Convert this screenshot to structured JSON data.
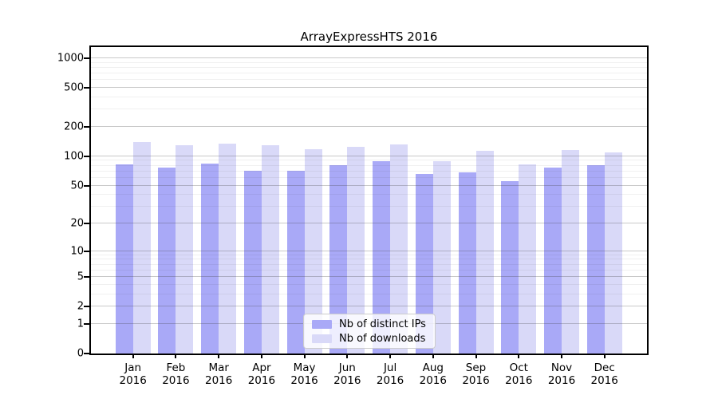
{
  "title": "ArrayExpressHTS 2016",
  "colors": {
    "ips": "#a9a9f7",
    "downloads": "#d9d9f8",
    "axis": "#000000",
    "legend_border": "#cccccc"
  },
  "legend": {
    "items": [
      {
        "label": "Nb of distinct IPs",
        "color_key": "ips"
      },
      {
        "label": "Nb of downloads",
        "color_key": "downloads"
      }
    ]
  },
  "chart_data": {
    "type": "bar",
    "title": "ArrayExpressHTS 2016",
    "categories": [
      "Jan",
      "Feb",
      "Mar",
      "Apr",
      "May",
      "Jun",
      "Jul",
      "Aug",
      "Sep",
      "Oct",
      "Nov",
      "Dec"
    ],
    "year": "2016",
    "series": [
      {
        "name": "Nb of distinct IPs",
        "values": [
          83,
          77,
          84,
          71,
          71,
          81,
          89,
          66,
          69,
          55,
          77,
          81
        ]
      },
      {
        "name": "Nb of downloads",
        "values": [
          139,
          129,
          135,
          130,
          119,
          125,
          132,
          89,
          114,
          82,
          116,
          110
        ]
      }
    ],
    "xlabel": "",
    "ylabel": "",
    "yscale": "log1p",
    "ylim": [
      0,
      1300
    ],
    "ytick_labels": [
      0,
      1,
      2,
      5,
      10,
      20,
      50,
      100,
      200,
      500,
      1000
    ],
    "yticks_minor": [
      3,
      4,
      6,
      7,
      8,
      9,
      30,
      40,
      60,
      70,
      80,
      90,
      300,
      400,
      600,
      700,
      800,
      900
    ],
    "grid": "on",
    "legend_position": "lower center"
  }
}
